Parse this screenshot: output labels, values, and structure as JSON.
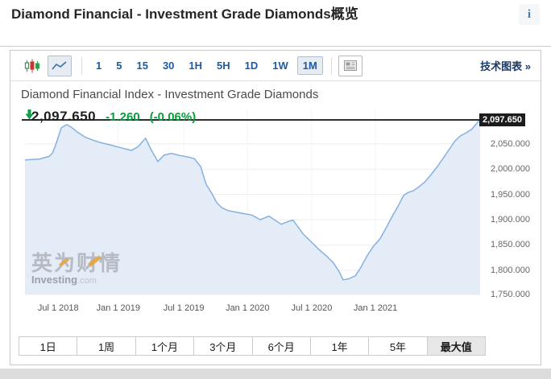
{
  "header": {
    "title": "Diamond Financial - Investment Grade Diamonds概览",
    "info_icon": "i"
  },
  "toolbar": {
    "candlestick_icon": "candlestick-chart",
    "line_icon": "line-chart",
    "intervals": [
      "1",
      "5",
      "15",
      "30",
      "1H",
      "5H",
      "1D",
      "1W",
      "1M"
    ],
    "selected_interval": "1M",
    "news_icon": "panel",
    "tech_chart_link": "技术图表 »"
  },
  "chart": {
    "title": "Diamond Financial Index - Investment Grade Diamonds",
    "price": "2,097.650",
    "change": "-1.260",
    "change_pct": "(-0.06%)",
    "price_badge": "2,097.650",
    "price_color": "#0a9e3c",
    "line_color": "#85b1e0",
    "fill_color": "#e3ecf7"
  },
  "watermark": {
    "cn": "英为财情",
    "en_bold": "Investing",
    "en_domain": ".com"
  },
  "range_buttons": {
    "items": [
      "1日",
      "1周",
      "1个月",
      "3个月",
      "6个月",
      "1年",
      "5年",
      "最大值"
    ],
    "selected": "最大值"
  },
  "chart_data": {
    "type": "area",
    "title": "Diamond Financial Index - Investment Grade Diamonds",
    "current_price": 2097.65,
    "change": -1.26,
    "change_pct": -0.06,
    "price_line_value": 2097.65,
    "grid": true,
    "legend": "none",
    "x_ticks": [
      {
        "label": "Jul 1 2018",
        "f": 0.073
      },
      {
        "label": "Jan 1 2019",
        "f": 0.205
      },
      {
        "label": "Jul 1 2019",
        "f": 0.349
      },
      {
        "label": "Jan 1 2020",
        "f": 0.489
      },
      {
        "label": "Jul 1 2020",
        "f": 0.63
      },
      {
        "label": "Jan 1 2021",
        "f": 0.77
      }
    ],
    "y_ticks": [
      {
        "label": "2,050.000",
        "value": 2050
      },
      {
        "label": "2,000.000",
        "value": 2000
      },
      {
        "label": "1,950.000",
        "value": 1950
      },
      {
        "label": "1,900.000",
        "value": 1900
      },
      {
        "label": "1,850.000",
        "value": 1850
      },
      {
        "label": "1,800.000",
        "value": 1800
      },
      {
        "label": "1,750.000",
        "value": 1750
      }
    ],
    "y_render_range": [
      1752,
      2118
    ],
    "points": [
      [
        0.0,
        2018
      ],
      [
        0.032,
        2020
      ],
      [
        0.053,
        2025
      ],
      [
        0.06,
        2031
      ],
      [
        0.067,
        2047
      ],
      [
        0.08,
        2082
      ],
      [
        0.092,
        2088
      ],
      [
        0.103,
        2082
      ],
      [
        0.117,
        2072
      ],
      [
        0.133,
        2063
      ],
      [
        0.15,
        2057
      ],
      [
        0.168,
        2052
      ],
      [
        0.191,
        2047
      ],
      [
        0.212,
        2042
      ],
      [
        0.234,
        2037
      ],
      [
        0.248,
        2044
      ],
      [
        0.265,
        2061
      ],
      [
        0.278,
        2037
      ],
      [
        0.292,
        2015
      ],
      [
        0.306,
        2028
      ],
      [
        0.322,
        2031
      ],
      [
        0.34,
        2027
      ],
      [
        0.358,
        2024
      ],
      [
        0.372,
        2021
      ],
      [
        0.386,
        2005
      ],
      [
        0.398,
        1970
      ],
      [
        0.411,
        1951
      ],
      [
        0.421,
        1934
      ],
      [
        0.432,
        1924
      ],
      [
        0.446,
        1918
      ],
      [
        0.464,
        1915
      ],
      [
        0.481,
        1912
      ],
      [
        0.499,
        1909
      ],
      [
        0.517,
        1900
      ],
      [
        0.536,
        1907
      ],
      [
        0.563,
        1891
      ],
      [
        0.577,
        1896
      ],
      [
        0.589,
        1899
      ],
      [
        0.611,
        1872
      ],
      [
        0.628,
        1857
      ],
      [
        0.646,
        1841
      ],
      [
        0.664,
        1827
      ],
      [
        0.678,
        1814
      ],
      [
        0.69,
        1798
      ],
      [
        0.699,
        1781
      ],
      [
        0.711,
        1783
      ],
      [
        0.726,
        1789
      ],
      [
        0.738,
        1806
      ],
      [
        0.752,
        1829
      ],
      [
        0.766,
        1848
      ],
      [
        0.78,
        1862
      ],
      [
        0.793,
        1883
      ],
      [
        0.807,
        1907
      ],
      [
        0.821,
        1929
      ],
      [
        0.832,
        1948
      ],
      [
        0.842,
        1954
      ],
      [
        0.853,
        1957
      ],
      [
        0.864,
        1964
      ],
      [
        0.878,
        1974
      ],
      [
        0.892,
        1989
      ],
      [
        0.906,
        2005
      ],
      [
        0.92,
        2023
      ],
      [
        0.933,
        2040
      ],
      [
        0.945,
        2056
      ],
      [
        0.957,
        2066
      ],
      [
        0.97,
        2072
      ],
      [
        0.982,
        2079
      ],
      [
        0.993,
        2091
      ],
      [
        1.0,
        2097.65
      ]
    ]
  }
}
